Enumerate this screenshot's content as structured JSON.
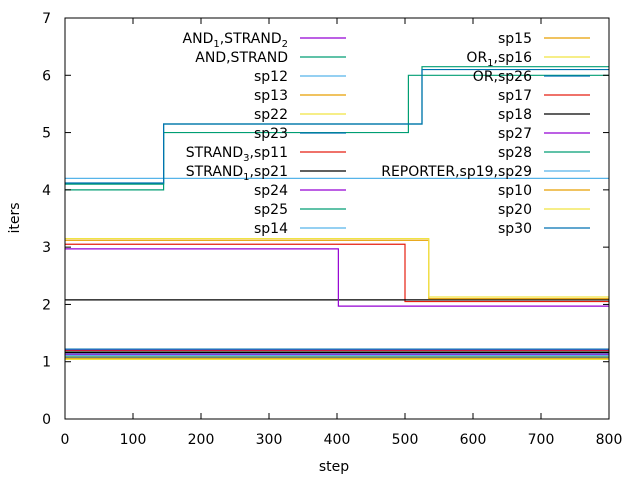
{
  "chart_data": {
    "type": "line",
    "xlabel": "step",
    "ylabel": "iters",
    "xlim": [
      0,
      800
    ],
    "ylim": [
      0,
      7
    ],
    "xticks": [
      "0",
      "100",
      "200",
      "300",
      "400",
      "500",
      "600",
      "700",
      "800"
    ],
    "yticks": [
      "0",
      "1",
      "2",
      "3",
      "4",
      "5",
      "6",
      "7"
    ],
    "grid": false,
    "legend": "top-right",
    "series": [
      {
        "label_main": "AND",
        "label_sub": "1",
        "label_rest": ",STRAND",
        "label_sub2": "2",
        "color": "#9400d3",
        "x": [
          0,
          800
        ],
        "y": [
          1.2,
          1.2
        ]
      },
      {
        "label_main": "AND,STRAND",
        "color": "#009e73",
        "x": [
          0,
          800
        ],
        "y": [
          1.17,
          1.17
        ]
      },
      {
        "label_main": "sp12",
        "color": "#56b4e9",
        "x": [
          0,
          800
        ],
        "y": [
          1.14,
          1.14
        ]
      },
      {
        "label_main": "sp13",
        "color": "#e69f00",
        "x": [
          0,
          800
        ],
        "y": [
          1.12,
          1.12
        ]
      },
      {
        "label_main": "sp22",
        "color": "#f0e442",
        "x": [
          0,
          800
        ],
        "y": [
          1.1,
          1.1
        ]
      },
      {
        "label_main": "sp23",
        "color": "#0072b2",
        "x": [
          0,
          800
        ],
        "y": [
          1.08,
          1.08
        ]
      },
      {
        "label_main": "STRAND",
        "label_sub": "3",
        "label_rest": ",sp11",
        "color": "#e51e10",
        "x": [
          0,
          500,
          500,
          800
        ],
        "y": [
          3.05,
          3.05,
          2.05,
          2.05
        ]
      },
      {
        "label_main": "STRAND",
        "label_sub": "1",
        "label_rest": ",sp21",
        "color": "#000000",
        "x": [
          0,
          800
        ],
        "y": [
          2.08,
          2.08
        ]
      },
      {
        "label_main": "sp24",
        "color": "#9400d3",
        "x": [
          0,
          402,
          402,
          800
        ],
        "y": [
          2.97,
          2.97,
          1.97,
          1.97
        ]
      },
      {
        "label_main": "sp25",
        "color": "#009e73",
        "x": [
          0,
          145,
          145,
          505,
          505,
          800
        ],
        "y": [
          4.0,
          4.0,
          5.0,
          5.0,
          6.0,
          6.0
        ]
      },
      {
        "label_main": "sp14",
        "color": "#56b4e9",
        "x": [
          0,
          800
        ],
        "y": [
          4.2,
          4.2
        ]
      },
      {
        "label_main": "sp15",
        "color": "#e69f00",
        "x": [
          0,
          800
        ],
        "y": [
          1.06,
          1.06
        ]
      },
      {
        "label_main": "OR",
        "label_sub": "1",
        "label_rest": ",sp16",
        "color": "#f0e442",
        "x": [
          0,
          800
        ],
        "y": [
          1.04,
          1.04
        ]
      },
      {
        "label_main": "OR,sp26",
        "color": "#0072b2",
        "x": [
          0,
          800
        ],
        "y": [
          1.22,
          1.22
        ]
      },
      {
        "label_main": "sp17",
        "color": "#e51e10",
        "x": [
          0,
          800
        ],
        "y": [
          1.19,
          1.19
        ]
      },
      {
        "label_main": "sp18",
        "color": "#000000",
        "x": [
          0,
          800
        ],
        "y": [
          1.16,
          1.16
        ]
      },
      {
        "label_main": "sp27",
        "color": "#9400d3",
        "x": [
          0,
          800
        ],
        "y": [
          1.13,
          1.13
        ]
      },
      {
        "label_main": "sp28",
        "color": "#009e73",
        "x": [
          0,
          145,
          145,
          525,
          525,
          800
        ],
        "y": [
          4.1,
          4.1,
          5.15,
          5.15,
          6.15,
          6.15
        ]
      },
      {
        "label_main": "REPORTER,sp19,sp29",
        "color": "#56b4e9",
        "x": [
          0,
          800
        ],
        "y": [
          1.11,
          1.11
        ]
      },
      {
        "label_main": "sp10",
        "color": "#e69f00",
        "x": [
          0,
          535,
          535,
          800
        ],
        "y": [
          3.12,
          3.12,
          2.1,
          2.1
        ]
      },
      {
        "label_main": "sp20",
        "color": "#f0e442",
        "x": [
          0,
          535,
          535,
          800
        ],
        "y": [
          3.15,
          3.15,
          2.13,
          2.13
        ]
      },
      {
        "label_main": "sp30",
        "color": "#0072b2",
        "x": [
          0,
          145,
          145,
          525,
          525,
          800
        ],
        "y": [
          4.12,
          4.12,
          5.15,
          5.15,
          6.1,
          6.1
        ]
      }
    ]
  }
}
